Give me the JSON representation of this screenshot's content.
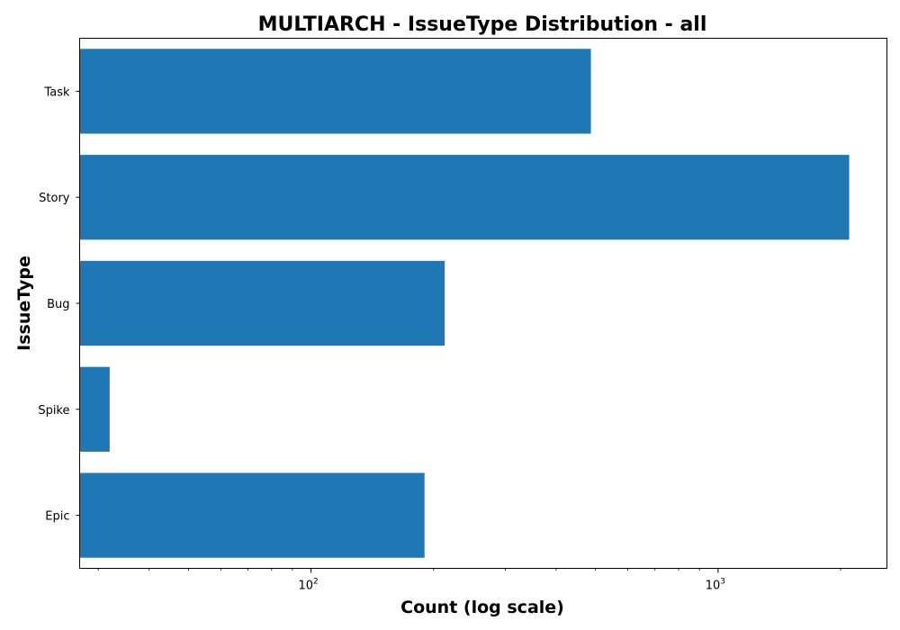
{
  "chart_data": {
    "type": "bar",
    "orientation": "horizontal",
    "title": "MULTIARCH - IssueType Distribution - all",
    "xlabel": "Count (log scale)",
    "ylabel": "IssueType",
    "xscale": "log",
    "xlim": [
      27,
      2600
    ],
    "categories": [
      "Task",
      "Story",
      "Bug",
      "Spike",
      "Epic"
    ],
    "values": [
      487,
      2100,
      213,
      32,
      190
    ],
    "xticks": [
      {
        "value": 100,
        "base": "10",
        "exp": "2"
      },
      {
        "value": 1000,
        "base": "10",
        "exp": "3"
      }
    ],
    "bar_color": "#1f77b4",
    "grid": false,
    "legend": "none"
  }
}
